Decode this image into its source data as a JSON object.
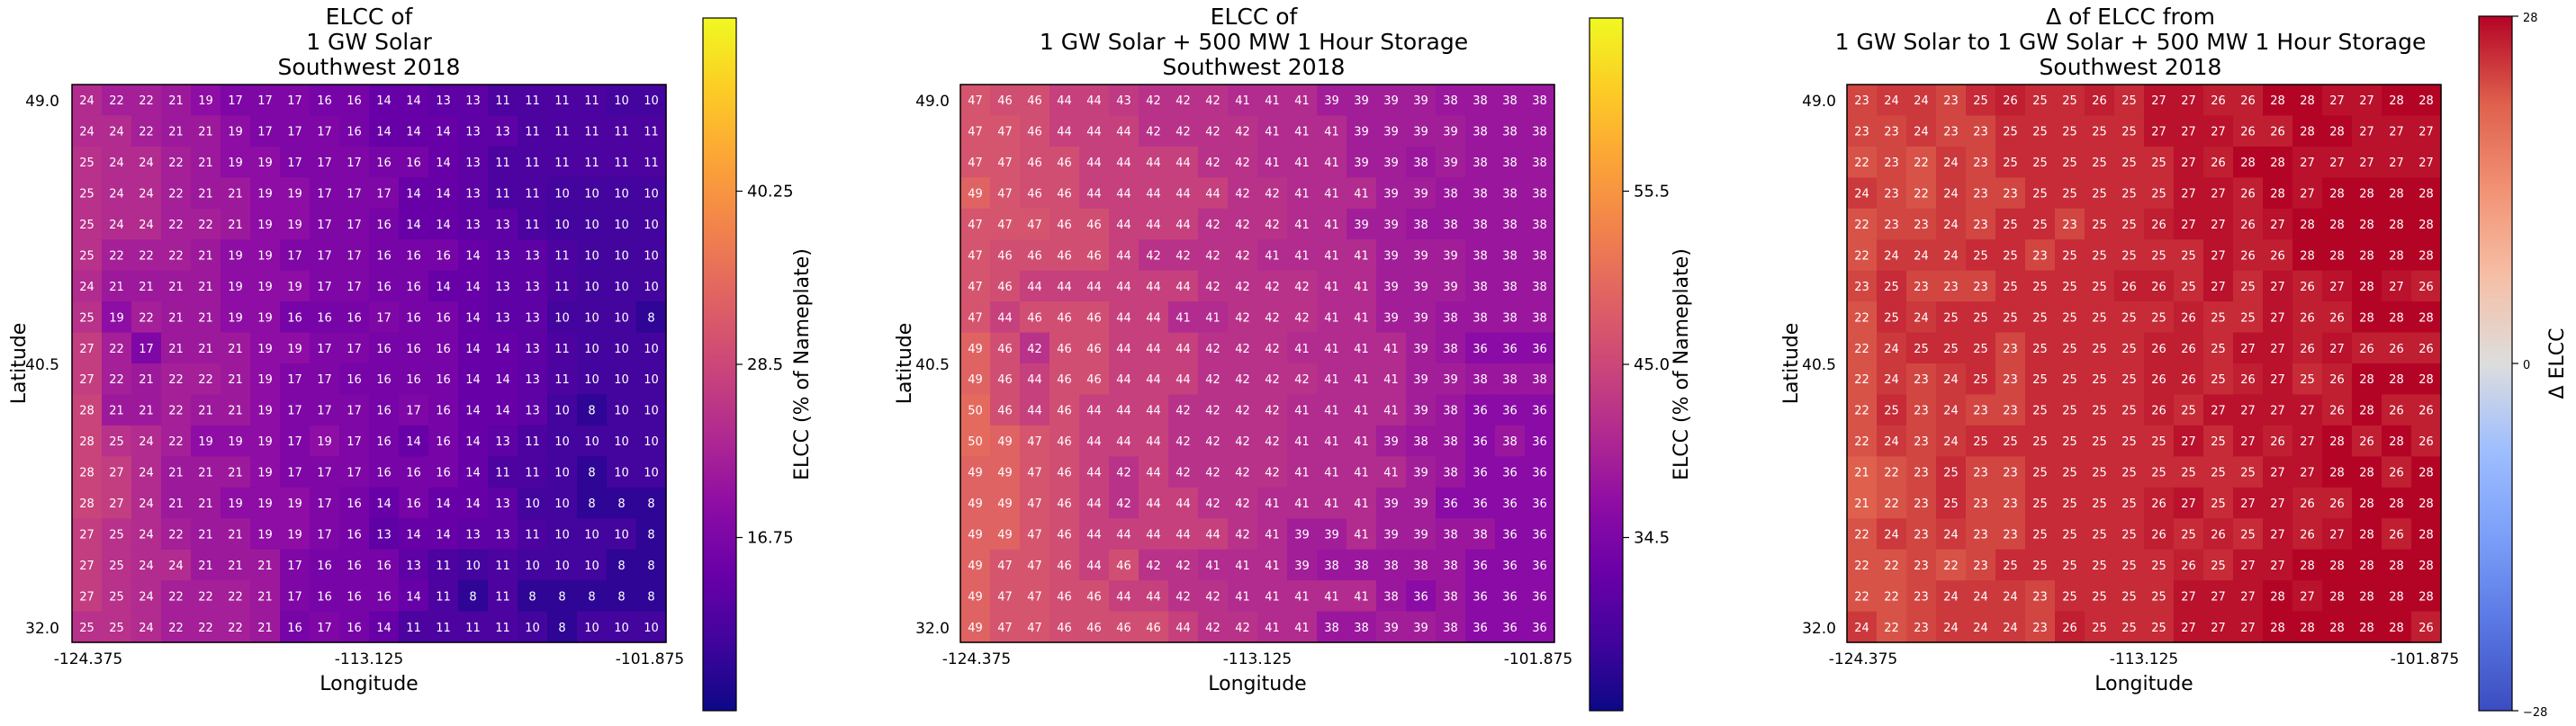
{
  "chart_data": [
    {
      "type": "heatmap",
      "title": [
        "ELCC of",
        "1 GW Solar",
        "Southwest 2018"
      ],
      "xlabel": "Longitude",
      "ylabel": "Latitude",
      "x_ticks": [
        "-124.375",
        "-113.125",
        "-101.875"
      ],
      "y_ticks": [
        "49.0",
        "40.5",
        "32.0"
      ],
      "colorbar": {
        "label": "ELCC (% of Nameplate)",
        "ticks": [
          "16.75",
          "28.5",
          "40.25"
        ],
        "range": [
          5,
          52
        ],
        "colormap": "plasma"
      },
      "values": [
        [
          24,
          22,
          22,
          21,
          19,
          17,
          17,
          17,
          16,
          16,
          14,
          14,
          13,
          13,
          11,
          11,
          11,
          11,
          10,
          10
        ],
        [
          24,
          24,
          22,
          21,
          21,
          19,
          17,
          17,
          17,
          16,
          14,
          14,
          14,
          13,
          13,
          11,
          11,
          11,
          11,
          11
        ],
        [
          25,
          24,
          24,
          22,
          21,
          19,
          19,
          17,
          17,
          17,
          16,
          16,
          14,
          13,
          11,
          11,
          11,
          11,
          11,
          11
        ],
        [
          25,
          24,
          24,
          22,
          21,
          21,
          19,
          19,
          17,
          17,
          17,
          14,
          14,
          13,
          11,
          11,
          10,
          10,
          10,
          10
        ],
        [
          25,
          24,
          24,
          22,
          22,
          21,
          19,
          19,
          17,
          17,
          16,
          14,
          14,
          13,
          13,
          11,
          10,
          10,
          10,
          10
        ],
        [
          25,
          22,
          22,
          22,
          21,
          19,
          19,
          17,
          17,
          17,
          16,
          16,
          16,
          14,
          13,
          13,
          11,
          10,
          10,
          10
        ],
        [
          24,
          21,
          21,
          21,
          21,
          19,
          19,
          19,
          17,
          17,
          16,
          16,
          14,
          14,
          13,
          13,
          11,
          10,
          10,
          10
        ],
        [
          25,
          19,
          22,
          21,
          21,
          19,
          19,
          16,
          16,
          16,
          17,
          16,
          16,
          14,
          13,
          13,
          10,
          10,
          10,
          8
        ],
        [
          27,
          22,
          17,
          21,
          21,
          21,
          19,
          19,
          17,
          17,
          16,
          16,
          16,
          14,
          14,
          13,
          11,
          10,
          10,
          10
        ],
        [
          27,
          22,
          21,
          22,
          22,
          21,
          19,
          17,
          17,
          16,
          16,
          16,
          16,
          14,
          14,
          13,
          11,
          10,
          10,
          10
        ],
        [
          28,
          21,
          21,
          22,
          21,
          21,
          19,
          17,
          17,
          17,
          16,
          17,
          16,
          14,
          14,
          13,
          10,
          8,
          10,
          10
        ],
        [
          28,
          25,
          24,
          22,
          19,
          19,
          19,
          17,
          19,
          17,
          16,
          14,
          16,
          14,
          13,
          11,
          10,
          10,
          10,
          10
        ],
        [
          28,
          27,
          24,
          21,
          21,
          21,
          19,
          17,
          17,
          17,
          16,
          16,
          16,
          14,
          11,
          11,
          10,
          8,
          10,
          10
        ],
        [
          28,
          27,
          24,
          21,
          21,
          19,
          19,
          19,
          17,
          16,
          14,
          16,
          14,
          14,
          13,
          10,
          10,
          8,
          8,
          8
        ],
        [
          27,
          25,
          24,
          22,
          21,
          21,
          19,
          19,
          17,
          16,
          13,
          14,
          14,
          13,
          13,
          11,
          10,
          10,
          10,
          8
        ],
        [
          27,
          25,
          24,
          24,
          21,
          21,
          21,
          17,
          16,
          16,
          16,
          13,
          11,
          10,
          11,
          10,
          10,
          10,
          8,
          8
        ],
        [
          27,
          25,
          24,
          22,
          22,
          22,
          21,
          17,
          16,
          16,
          16,
          14,
          11,
          8,
          11,
          8,
          8,
          8,
          8,
          8
        ],
        [
          25,
          25,
          24,
          22,
          22,
          22,
          21,
          16,
          17,
          16,
          14,
          11,
          11,
          11,
          11,
          10,
          8,
          10,
          10,
          10
        ]
      ]
    },
    {
      "type": "heatmap",
      "title": [
        "ELCC of",
        "1 GW Solar + 500 MW 1 Hour Storage",
        "Southwest 2018"
      ],
      "xlabel": "Longitude",
      "ylabel": "Latitude",
      "x_ticks": [
        "-124.375",
        "-113.125",
        "-101.875"
      ],
      "y_ticks": [
        "49.0",
        "40.5",
        "32.0"
      ],
      "colorbar": {
        "label": "ELCC (% of Nameplate)",
        "ticks": [
          "34.5",
          "45.0",
          "55.5"
        ],
        "range": [
          24,
          66
        ],
        "colormap": "plasma"
      },
      "values": [
        [
          47,
          46,
          46,
          44,
          44,
          43,
          42,
          42,
          42,
          41,
          41,
          41,
          39,
          39,
          39,
          39,
          38,
          38,
          38,
          38
        ],
        [
          47,
          47,
          46,
          44,
          44,
          44,
          42,
          42,
          42,
          42,
          41,
          41,
          41,
          39,
          39,
          39,
          39,
          38,
          38,
          38
        ],
        [
          47,
          47,
          46,
          46,
          44,
          44,
          44,
          44,
          42,
          42,
          41,
          41,
          41,
          39,
          39,
          38,
          39,
          38,
          38,
          38
        ],
        [
          49,
          47,
          46,
          46,
          44,
          44,
          44,
          44,
          44,
          42,
          42,
          41,
          41,
          41,
          39,
          39,
          38,
          38,
          38,
          38
        ],
        [
          47,
          47,
          47,
          46,
          46,
          44,
          44,
          44,
          42,
          42,
          42,
          41,
          41,
          39,
          39,
          38,
          38,
          38,
          38,
          38
        ],
        [
          47,
          46,
          46,
          46,
          46,
          44,
          42,
          42,
          42,
          42,
          41,
          41,
          41,
          41,
          39,
          39,
          39,
          38,
          38,
          38
        ],
        [
          47,
          46,
          44,
          44,
          44,
          44,
          44,
          44,
          42,
          42,
          42,
          42,
          41,
          41,
          39,
          39,
          39,
          38,
          38,
          38
        ],
        [
          47,
          44,
          46,
          46,
          46,
          44,
          44,
          41,
          41,
          42,
          42,
          42,
          41,
          41,
          39,
          39,
          38,
          38,
          38,
          38
        ],
        [
          49,
          46,
          42,
          46,
          46,
          44,
          44,
          44,
          42,
          42,
          42,
          41,
          41,
          41,
          41,
          39,
          38,
          36,
          36,
          36
        ],
        [
          49,
          46,
          44,
          46,
          46,
          44,
          44,
          44,
          42,
          42,
          42,
          42,
          41,
          41,
          41,
          39,
          39,
          38,
          38,
          38
        ],
        [
          50,
          46,
          44,
          46,
          44,
          44,
          44,
          42,
          42,
          42,
          42,
          41,
          41,
          41,
          41,
          39,
          38,
          36,
          36,
          36
        ],
        [
          50,
          49,
          47,
          46,
          44,
          44,
          44,
          42,
          42,
          42,
          42,
          41,
          41,
          41,
          39,
          38,
          38,
          36,
          38,
          36
        ],
        [
          49,
          49,
          47,
          46,
          44,
          42,
          44,
          42,
          42,
          42,
          42,
          41,
          41,
          41,
          41,
          39,
          38,
          36,
          36,
          36
        ],
        [
          49,
          49,
          47,
          46,
          44,
          42,
          44,
          44,
          42,
          42,
          41,
          41,
          41,
          41,
          39,
          39,
          36,
          36,
          36,
          36
        ],
        [
          49,
          49,
          47,
          46,
          44,
          44,
          44,
          44,
          44,
          42,
          41,
          39,
          39,
          41,
          39,
          39,
          38,
          38,
          36,
          36
        ],
        [
          49,
          47,
          47,
          46,
          44,
          46,
          42,
          42,
          41,
          41,
          41,
          39,
          38,
          38,
          38,
          38,
          38,
          36,
          36,
          36
        ],
        [
          49,
          47,
          47,
          46,
          46,
          44,
          44,
          42,
          42,
          41,
          41,
          41,
          41,
          41,
          38,
          36,
          38,
          36,
          36,
          36
        ],
        [
          49,
          47,
          47,
          46,
          46,
          46,
          46,
          44,
          42,
          42,
          41,
          41,
          38,
          38,
          39,
          39,
          38,
          36,
          36,
          36
        ]
      ]
    },
    {
      "type": "heatmap",
      "title": [
        "Δ of ELCC from",
        "1 GW Solar to 1 GW Solar + 500 MW 1 Hour Storage",
        "Southwest 2018"
      ],
      "xlabel": "Longitude",
      "ylabel": "Latitude",
      "x_ticks": [
        "-124.375",
        "-113.125",
        "-101.875"
      ],
      "y_ticks": [
        "49.0",
        "40.5",
        "32.0"
      ],
      "colorbar": {
        "label": "Δ ELCC",
        "ticks": [
          "28",
          "0",
          "−28"
        ],
        "range": [
          -28,
          28
        ],
        "colormap": "coolwarm"
      },
      "values": [
        [
          23,
          24,
          24,
          23,
          25,
          26,
          25,
          25,
          26,
          25,
          27,
          27,
          26,
          26,
          28,
          28,
          27,
          27,
          28,
          28
        ],
        [
          23,
          23,
          24,
          23,
          23,
          25,
          25,
          25,
          25,
          25,
          27,
          27,
          27,
          26,
          26,
          28,
          28,
          27,
          27,
          27
        ],
        [
          22,
          23,
          22,
          24,
          23,
          25,
          25,
          25,
          25,
          25,
          25,
          27,
          26,
          28,
          28,
          27,
          27,
          27,
          27,
          27
        ],
        [
          24,
          23,
          22,
          24,
          23,
          23,
          25,
          25,
          25,
          25,
          25,
          27,
          27,
          26,
          28,
          27,
          28,
          28,
          28,
          28
        ],
        [
          22,
          23,
          23,
          24,
          23,
          25,
          25,
          23,
          25,
          25,
          26,
          27,
          27,
          26,
          27,
          28,
          28,
          28,
          28,
          28
        ],
        [
          22,
          24,
          24,
          24,
          25,
          25,
          23,
          25,
          25,
          25,
          25,
          25,
          27,
          26,
          26,
          28,
          28,
          28,
          28,
          28
        ],
        [
          23,
          25,
          23,
          23,
          23,
          25,
          25,
          25,
          25,
          26,
          26,
          25,
          27,
          25,
          27,
          26,
          27,
          28,
          27,
          26
        ],
        [
          22,
          25,
          24,
          25,
          25,
          25,
          25,
          25,
          25,
          25,
          25,
          26,
          25,
          25,
          27,
          26,
          26,
          28,
          28,
          28
        ],
        [
          22,
          24,
          25,
          25,
          25,
          23,
          25,
          25,
          25,
          25,
          26,
          26,
          25,
          27,
          27,
          26,
          27,
          26,
          26,
          26
        ],
        [
          22,
          24,
          23,
          24,
          25,
          23,
          25,
          25,
          25,
          25,
          26,
          26,
          25,
          26,
          27,
          25,
          26,
          28,
          28,
          28
        ],
        [
          22,
          25,
          23,
          24,
          23,
          23,
          25,
          25,
          25,
          25,
          26,
          25,
          27,
          27,
          27,
          27,
          26,
          28,
          26,
          26
        ],
        [
          22,
          24,
          23,
          24,
          25,
          25,
          25,
          25,
          25,
          25,
          25,
          27,
          25,
          27,
          26,
          27,
          28,
          26,
          28,
          26
        ],
        [
          21,
          22,
          23,
          25,
          23,
          23,
          25,
          25,
          25,
          25,
          25,
          25,
          25,
          25,
          27,
          27,
          28,
          28,
          26,
          28
        ],
        [
          21,
          22,
          23,
          25,
          23,
          23,
          25,
          25,
          25,
          25,
          26,
          27,
          25,
          27,
          27,
          26,
          26,
          28,
          28,
          28
        ],
        [
          22,
          24,
          23,
          24,
          23,
          23,
          25,
          25,
          25,
          25,
          26,
          25,
          26,
          25,
          27,
          26,
          27,
          28,
          26,
          28
        ],
        [
          22,
          22,
          23,
          22,
          23,
          25,
          25,
          25,
          25,
          25,
          25,
          26,
          25,
          27,
          27,
          28,
          28,
          28,
          28,
          28
        ],
        [
          22,
          22,
          23,
          24,
          24,
          24,
          23,
          25,
          25,
          25,
          25,
          27,
          27,
          27,
          28,
          27,
          28,
          28,
          28,
          28
        ],
        [
          24,
          22,
          23,
          24,
          24,
          24,
          23,
          26,
          25,
          25,
          25,
          27,
          27,
          27,
          28,
          28,
          28,
          28,
          28,
          26
        ]
      ]
    }
  ]
}
